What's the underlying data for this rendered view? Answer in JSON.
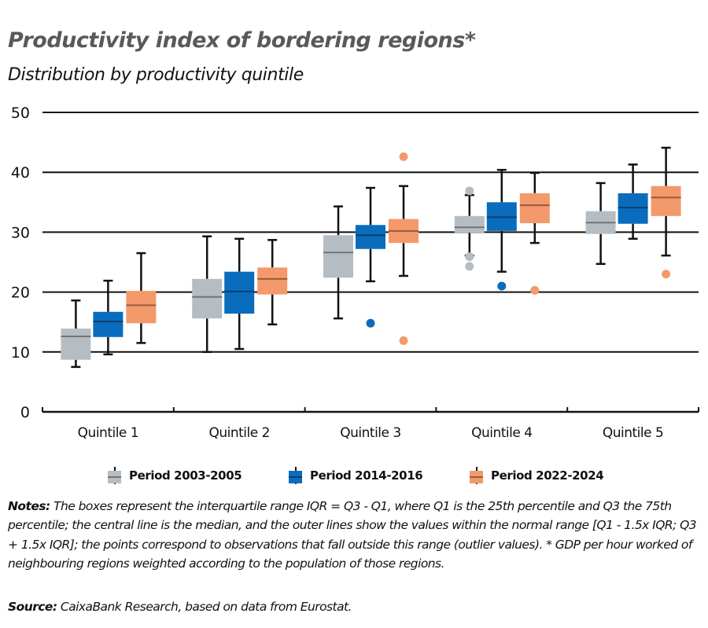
{
  "header": {
    "title": "Productivity index of bordering regions*",
    "subtitle": "Distribution by productivity quintile"
  },
  "legend": [
    {
      "label": "Period 2003-2005",
      "color": "#b6bdc2",
      "median_color": "#6f7478"
    },
    {
      "label": "Period 2014-2016",
      "color": "#0a6cbd",
      "median_color": "#0b3e6b"
    },
    {
      "label": "Period 2022-2024",
      "color": "#f4996b",
      "median_color": "#9a5a3c"
    }
  ],
  "footer": {
    "notes_label": "Notes:",
    "notes_text": " The boxes represent the interquartile range IQR = Q3 - Q1, where Q1 is the 25th percentile and Q3 the 75th percentile; the central line is the median, and the outer lines show the values within the normal range [Q1 - 1.5x IQR; Q3 + 1.5x IQR]; the points correspond to observations that fall outside this range (outlier values). * GDP per hour worked of neighbouring regions weighted according to the population of those regions.",
    "source_label": "Source:",
    "source_text": " CaixaBank Research, based on data from Eurostat."
  },
  "chart_data": {
    "type": "boxplot",
    "title": "Productivity index of bordering regions*",
    "subtitle": "Distribution by productivity quintile",
    "xlabel": "",
    "ylabel": "",
    "ylim": [
      0,
      50
    ],
    "yticks": [
      0,
      10,
      20,
      30,
      40,
      50
    ],
    "grid": "horizontal",
    "legend_position": "bottom",
    "categories": [
      "Quintile 1",
      "Quintile 2",
      "Quintile 3",
      "Quintile 4",
      "Quintile 5"
    ],
    "series": [
      {
        "name": "Period 2003-2005",
        "color": "#b6bdc2",
        "boxes": [
          {
            "whisker_low": 7.5,
            "q1": 8.7,
            "median": 12.6,
            "q3": 13.9,
            "whisker_high": 18.6,
            "outliers": []
          },
          {
            "whisker_low": 10.0,
            "q1": 15.6,
            "median": 19.2,
            "q3": 22.2,
            "whisker_high": 29.3,
            "outliers": []
          },
          {
            "whisker_low": 15.6,
            "q1": 22.4,
            "median": 26.6,
            "q3": 29.5,
            "whisker_high": 34.3,
            "outliers": []
          },
          {
            "whisker_low": 26.1,
            "q1": 29.9,
            "median": 30.8,
            "q3": 32.7,
            "whisker_high": 36.2,
            "outliers": [
              36.9,
              25.9,
              24.3
            ]
          },
          {
            "whisker_low": 24.7,
            "q1": 29.7,
            "median": 31.6,
            "q3": 33.5,
            "whisker_high": 38.2,
            "outliers": []
          }
        ]
      },
      {
        "name": "Period 2014-2016",
        "color": "#0a6cbd",
        "boxes": [
          {
            "whisker_low": 9.6,
            "q1": 12.5,
            "median": 15.1,
            "q3": 16.7,
            "whisker_high": 21.9,
            "outliers": []
          },
          {
            "whisker_low": 10.5,
            "q1": 16.4,
            "median": 20.1,
            "q3": 23.4,
            "whisker_high": 28.9,
            "outliers": []
          },
          {
            "whisker_low": 21.8,
            "q1": 27.2,
            "median": 29.5,
            "q3": 31.2,
            "whisker_high": 37.4,
            "outliers": [
              14.8
            ]
          },
          {
            "whisker_low": 23.4,
            "q1": 30.2,
            "median": 32.5,
            "q3": 35.0,
            "whisker_high": 40.4,
            "outliers": [
              21.0
            ]
          },
          {
            "whisker_low": 28.9,
            "q1": 31.4,
            "median": 34.1,
            "q3": 36.5,
            "whisker_high": 41.3,
            "outliers": []
          }
        ]
      },
      {
        "name": "Period 2022-2024",
        "color": "#f4996b",
        "boxes": [
          {
            "whisker_low": 11.5,
            "q1": 14.8,
            "median": 17.8,
            "q3": 20.2,
            "whisker_high": 26.5,
            "outliers": []
          },
          {
            "whisker_low": 14.6,
            "q1": 19.6,
            "median": 22.2,
            "q3": 24.1,
            "whisker_high": 28.7,
            "outliers": []
          },
          {
            "whisker_low": 22.7,
            "q1": 28.2,
            "median": 30.2,
            "q3": 32.2,
            "whisker_high": 37.7,
            "outliers": [
              42.6,
              11.9
            ]
          },
          {
            "whisker_low": 28.2,
            "q1": 31.5,
            "median": 34.5,
            "q3": 36.5,
            "whisker_high": 39.9,
            "outliers": [
              20.3
            ]
          },
          {
            "whisker_low": 26.1,
            "q1": 32.7,
            "median": 35.8,
            "q3": 37.7,
            "whisker_high": 44.1,
            "outliers": [
              23.0
            ]
          }
        ]
      }
    ]
  }
}
